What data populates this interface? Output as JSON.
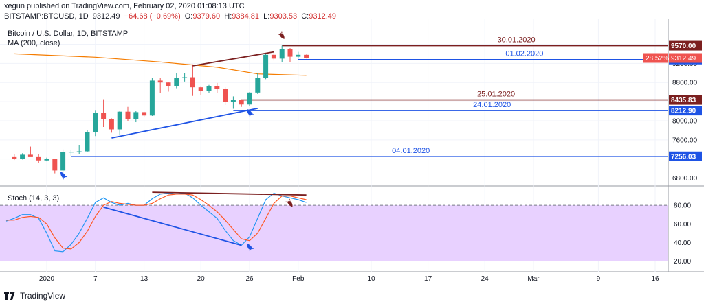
{
  "header": {
    "publisher": "xegun published on TradingView.com, February 02, 2020 01:08:13 UTC",
    "symbol": "BITSTAMP:BTCUSD, 1D",
    "price": "9312.49",
    "change": "−64.68 (−0.69%)",
    "o_label": "O:",
    "o": "9379.60",
    "h_label": "H:",
    "h": "9384.81",
    "l_label": "L:",
    "l": "9303.53",
    "c_label": "C:",
    "c": "9312.49"
  },
  "legend": {
    "title": "Bitcoin / U.S. Dollar, 1D, BITSTAMP",
    "ma": "MA (200, close)",
    "stoch": "Stoch (14, 3, 3)"
  },
  "footer": {
    "brand": "TradingView"
  },
  "colors": {
    "bull": "#26a69a",
    "bear": "#ef5350",
    "ma": "#f57c00",
    "blue": "#1e53e5",
    "maroon": "#7b1f1f",
    "k": "#2196f3",
    "d": "#ff5722",
    "stoch_band": "#e8d1ff"
  },
  "chart_data": [
    {
      "type": "candlestick",
      "title": "Bitcoin / U.S. Dollar, 1D, BITSTAMP",
      "x_ticks": [
        "2020",
        "7",
        "13",
        "20",
        "26",
        "Feb",
        "10",
        "17",
        "24",
        "Mar",
        "9",
        "16"
      ],
      "y_ticks": [
        6800,
        7200,
        7600,
        8000,
        8400,
        8800,
        9200,
        9600
      ],
      "ylim": [
        6650,
        9980
      ],
      "candles": [
        {
          "date": "2019-12-28",
          "o": 7240,
          "h": 7300,
          "l": 7180,
          "c": 7200
        },
        {
          "date": "2019-12-29",
          "o": 7200,
          "h": 7320,
          "l": 7190,
          "c": 7290
        },
        {
          "date": "2019-12-30",
          "o": 7290,
          "h": 7460,
          "l": 7260,
          "c": 7240
        },
        {
          "date": "2019-12-31",
          "o": 7240,
          "h": 7300,
          "l": 7120,
          "c": 7170
        },
        {
          "date": "2020-01-01",
          "o": 7170,
          "h": 7230,
          "l": 7150,
          "c": 7200
        },
        {
          "date": "2020-01-02",
          "o": 7200,
          "h": 7210,
          "l": 6900,
          "c": 6960
        },
        {
          "date": "2020-01-03",
          "o": 6960,
          "h": 7400,
          "l": 6870,
          "c": 7340
        },
        {
          "date": "2020-01-04",
          "o": 7340,
          "h": 7390,
          "l": 7270,
          "c": 7350
        },
        {
          "date": "2020-01-05",
          "o": 7350,
          "h": 7490,
          "l": 7310,
          "c": 7360
        },
        {
          "date": "2020-01-06",
          "o": 7360,
          "h": 7810,
          "l": 7350,
          "c": 7760
        },
        {
          "date": "2020-01-07",
          "o": 7760,
          "h": 8210,
          "l": 7680,
          "c": 8160
        },
        {
          "date": "2020-01-08",
          "o": 8160,
          "h": 8450,
          "l": 7870,
          "c": 8040
        },
        {
          "date": "2020-01-09",
          "o": 8040,
          "h": 8050,
          "l": 7750,
          "c": 7820
        },
        {
          "date": "2020-01-10",
          "o": 7820,
          "h": 8200,
          "l": 7700,
          "c": 8190
        },
        {
          "date": "2020-01-11",
          "o": 8190,
          "h": 8290,
          "l": 8000,
          "c": 8040
        },
        {
          "date": "2020-01-12",
          "o": 8040,
          "h": 8200,
          "l": 7970,
          "c": 8180
        },
        {
          "date": "2020-01-13",
          "o": 8180,
          "h": 8190,
          "l": 8070,
          "c": 8110
        },
        {
          "date": "2020-01-14",
          "o": 8110,
          "h": 8900,
          "l": 8100,
          "c": 8840
        },
        {
          "date": "2020-01-15",
          "o": 8840,
          "h": 8890,
          "l": 8580,
          "c": 8800
        },
        {
          "date": "2020-01-16",
          "o": 8800,
          "h": 8810,
          "l": 8610,
          "c": 8720
        },
        {
          "date": "2020-01-17",
          "o": 8720,
          "h": 9000,
          "l": 8680,
          "c": 8900
        },
        {
          "date": "2020-01-18",
          "o": 8900,
          "h": 9000,
          "l": 8820,
          "c": 8910
        },
        {
          "date": "2020-01-19",
          "o": 8910,
          "h": 9180,
          "l": 8520,
          "c": 8700
        },
        {
          "date": "2020-01-20",
          "o": 8700,
          "h": 8710,
          "l": 8540,
          "c": 8630
        },
        {
          "date": "2020-01-21",
          "o": 8630,
          "h": 8750,
          "l": 8580,
          "c": 8730
        },
        {
          "date": "2020-01-22",
          "o": 8730,
          "h": 8790,
          "l": 8580,
          "c": 8660
        },
        {
          "date": "2020-01-23",
          "o": 8660,
          "h": 8700,
          "l": 8330,
          "c": 8400
        },
        {
          "date": "2020-01-24",
          "o": 8400,
          "h": 8510,
          "l": 8250,
          "c": 8440
        },
        {
          "date": "2020-01-25",
          "o": 8440,
          "h": 8450,
          "l": 8290,
          "c": 8340
        },
        {
          "date": "2020-01-26",
          "o": 8340,
          "h": 8600,
          "l": 8300,
          "c": 8590
        },
        {
          "date": "2020-01-27",
          "o": 8590,
          "h": 8990,
          "l": 8560,
          "c": 8900
        },
        {
          "date": "2020-01-28",
          "o": 8900,
          "h": 9400,
          "l": 8870,
          "c": 9380
        },
        {
          "date": "2020-01-29",
          "o": 9380,
          "h": 9440,
          "l": 9260,
          "c": 9300
        },
        {
          "date": "2020-01-30",
          "o": 9300,
          "h": 9570,
          "l": 9230,
          "c": 9500
        },
        {
          "date": "2020-01-31",
          "o": 9500,
          "h": 9520,
          "l": 9220,
          "c": 9340
        },
        {
          "date": "2020-02-01",
          "o": 9340,
          "h": 9440,
          "l": 9300,
          "c": 9380
        },
        {
          "date": "2020-02-02",
          "o": 9379.6,
          "h": 9384.81,
          "l": 9303.53,
          "c": 9312.49
        }
      ],
      "ma200": [
        {
          "date": "2019-12-28",
          "v": 9400
        },
        {
          "date": "2020-01-07",
          "v": 9330
        },
        {
          "date": "2020-01-15",
          "v": 9230
        },
        {
          "date": "2020-01-22",
          "v": 9120
        },
        {
          "date": "2020-01-27",
          "v": 8980
        },
        {
          "date": "2020-02-02",
          "v": 8950
        }
      ],
      "levels": [
        {
          "label": "30.01.2020",
          "value": 9570.0,
          "axis_label": "9570.00",
          "color": "#7b1f1f"
        },
        {
          "label": "01.02.2020",
          "value": 9280.33,
          "axis_label": "9280.33",
          "color": "#1e53e5"
        },
        {
          "label": "25.01.2020",
          "value": 8435.83,
          "axis_label": "8435.83",
          "color": "#7b1f1f"
        },
        {
          "label": "24.01.2020",
          "value": 8212.9,
          "axis_label": "8212.90",
          "color": "#1e53e5"
        },
        {
          "label": "04.01.2020",
          "value": 7256.03,
          "axis_label": "7256.03",
          "color": "#1e53e5"
        }
      ],
      "last_price": {
        "value": 9312.49,
        "axis_label": "9312.49",
        "pct_label": "28.52%"
      },
      "trendlines": [
        {
          "from": {
            "date": "2020-01-09",
            "v": 7640
          },
          "to": {
            "date": "2020-01-27",
            "v": 8260
          },
          "color": "#1e53e5"
        },
        {
          "from": {
            "date": "2020-01-19",
            "v": 9150
          },
          "to": {
            "date": "2020-01-29",
            "v": 9440
          },
          "color": "#7b1f1f"
        }
      ],
      "markers": [
        {
          "date": "2020-01-03",
          "v": 6860,
          "dir": "up"
        },
        {
          "date": "2020-01-26",
          "v": 8170,
          "dir": "up"
        },
        {
          "date": "2020-01-30",
          "v": 9780,
          "dir": "down"
        }
      ]
    },
    {
      "type": "line",
      "title": "Stoch (14, 3, 3)",
      "y_ticks": [
        20,
        40,
        60,
        80
      ],
      "ylim": [
        13,
        100
      ],
      "band": [
        20,
        80
      ],
      "series": [
        {
          "key": "k",
          "values": [
            {
              "date": "2019-12-27",
              "v": 63
            },
            {
              "date": "2019-12-28",
              "v": 66
            },
            {
              "date": "2019-12-29",
              "v": 70
            },
            {
              "date": "2019-12-30",
              "v": 70
            },
            {
              "date": "2019-12-31",
              "v": 66
            },
            {
              "date": "2020-01-01",
              "v": 50
            },
            {
              "date": "2020-01-02",
              "v": 31
            },
            {
              "date": "2020-01-03",
              "v": 30
            },
            {
              "date": "2020-01-04",
              "v": 38
            },
            {
              "date": "2020-01-05",
              "v": 50
            },
            {
              "date": "2020-01-06",
              "v": 66
            },
            {
              "date": "2020-01-07",
              "v": 83
            },
            {
              "date": "2020-01-08",
              "v": 88
            },
            {
              "date": "2020-01-09",
              "v": 83
            },
            {
              "date": "2020-01-10",
              "v": 80
            },
            {
              "date": "2020-01-11",
              "v": 82
            },
            {
              "date": "2020-01-12",
              "v": 80
            },
            {
              "date": "2020-01-13",
              "v": 80
            },
            {
              "date": "2020-01-14",
              "v": 87
            },
            {
              "date": "2020-01-15",
              "v": 92
            },
            {
              "date": "2020-01-16",
              "v": 93
            },
            {
              "date": "2020-01-17",
              "v": 92
            },
            {
              "date": "2020-01-18",
              "v": 93
            },
            {
              "date": "2020-01-19",
              "v": 88
            },
            {
              "date": "2020-01-20",
              "v": 80
            },
            {
              "date": "2020-01-21",
              "v": 73
            },
            {
              "date": "2020-01-22",
              "v": 66
            },
            {
              "date": "2020-01-23",
              "v": 53
            },
            {
              "date": "2020-01-24",
              "v": 42
            },
            {
              "date": "2020-01-25",
              "v": 37
            },
            {
              "date": "2020-01-26",
              "v": 46
            },
            {
              "date": "2020-01-27",
              "v": 66
            },
            {
              "date": "2020-01-28",
              "v": 86
            },
            {
              "date": "2020-01-29",
              "v": 93
            },
            {
              "date": "2020-01-30",
              "v": 90
            },
            {
              "date": "2020-01-31",
              "v": 88
            },
            {
              "date": "2020-02-01",
              "v": 86
            },
            {
              "date": "2020-02-02",
              "v": 83
            }
          ]
        },
        {
          "key": "d",
          "values": [
            {
              "date": "2019-12-27",
              "v": 64
            },
            {
              "date": "2019-12-28",
              "v": 64
            },
            {
              "date": "2019-12-29",
              "v": 67
            },
            {
              "date": "2019-12-30",
              "v": 68
            },
            {
              "date": "2019-12-31",
              "v": 67
            },
            {
              "date": "2020-01-01",
              "v": 60
            },
            {
              "date": "2020-01-02",
              "v": 45
            },
            {
              "date": "2020-01-03",
              "v": 34
            },
            {
              "date": "2020-01-04",
              "v": 33
            },
            {
              "date": "2020-01-05",
              "v": 40
            },
            {
              "date": "2020-01-06",
              "v": 52
            },
            {
              "date": "2020-01-07",
              "v": 68
            },
            {
              "date": "2020-01-08",
              "v": 80
            },
            {
              "date": "2020-01-09",
              "v": 84
            },
            {
              "date": "2020-01-10",
              "v": 82
            },
            {
              "date": "2020-01-11",
              "v": 81
            },
            {
              "date": "2020-01-12",
              "v": 80
            },
            {
              "date": "2020-01-13",
              "v": 80
            },
            {
              "date": "2020-01-14",
              "v": 82
            },
            {
              "date": "2020-01-15",
              "v": 87
            },
            {
              "date": "2020-01-16",
              "v": 91
            },
            {
              "date": "2020-01-17",
              "v": 92
            },
            {
              "date": "2020-01-18",
              "v": 92
            },
            {
              "date": "2020-01-19",
              "v": 91
            },
            {
              "date": "2020-01-20",
              "v": 86
            },
            {
              "date": "2020-01-21",
              "v": 80
            },
            {
              "date": "2020-01-22",
              "v": 73
            },
            {
              "date": "2020-01-23",
              "v": 64
            },
            {
              "date": "2020-01-24",
              "v": 54
            },
            {
              "date": "2020-01-25",
              "v": 44
            },
            {
              "date": "2020-01-26",
              "v": 42
            },
            {
              "date": "2020-01-27",
              "v": 50
            },
            {
              "date": "2020-01-28",
              "v": 66
            },
            {
              "date": "2020-01-29",
              "v": 82
            },
            {
              "date": "2020-01-30",
              "v": 90
            },
            {
              "date": "2020-01-31",
              "v": 90
            },
            {
              "date": "2020-02-01",
              "v": 88
            },
            {
              "date": "2020-02-02",
              "v": 86
            }
          ]
        }
      ],
      "trendlines": [
        {
          "from": {
            "date": "2020-01-08",
            "v": 78
          },
          "to": {
            "date": "2020-01-25",
            "v": 37
          },
          "color": "#1e53e5"
        },
        {
          "from": {
            "date": "2020-01-14",
            "v": 94
          },
          "to": {
            "date": "2020-02-02",
            "v": 91
          },
          "color": "#7b1f1f"
        }
      ],
      "markers": [
        {
          "date": "2020-01-26",
          "v": 35,
          "dir": "up"
        },
        {
          "date": "2020-01-31",
          "v": 82,
          "dir": "down"
        }
      ]
    }
  ]
}
